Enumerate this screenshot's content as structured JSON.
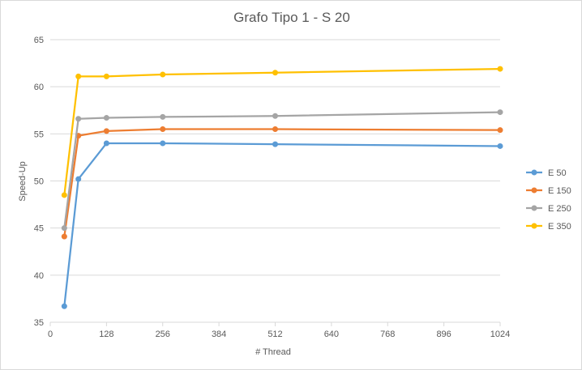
{
  "chart_data": {
    "type": "line",
    "title": "Grafo Tipo 1 - S 20",
    "xlabel": "# Thread",
    "ylabel": "Speed-Up",
    "xlim": [
      0,
      1024
    ],
    "ylim": [
      35,
      65
    ],
    "x_ticks": [
      "0",
      "128",
      "256",
      "384",
      "512",
      "640",
      "768",
      "896",
      "1024"
    ],
    "y_ticks": [
      "35",
      "40",
      "45",
      "50",
      "55",
      "60",
      "65"
    ],
    "grid": true,
    "legend_position": "right",
    "x": [
      32,
      64,
      128,
      256,
      512,
      1024
    ],
    "series": [
      {
        "name": "E 50",
        "color": "#5b9bd5",
        "values": [
          36.7,
          50.2,
          54.0,
          54.0,
          53.9,
          53.7
        ]
      },
      {
        "name": "E 150",
        "color": "#ed7d31",
        "values": [
          44.1,
          54.8,
          55.3,
          55.5,
          55.5,
          55.4
        ]
      },
      {
        "name": "E 250",
        "color": "#a5a5a5",
        "values": [
          45.0,
          56.6,
          56.7,
          56.8,
          56.9,
          57.3
        ]
      },
      {
        "name": "E 350",
        "color": "#ffc000",
        "values": [
          48.5,
          61.1,
          61.1,
          61.3,
          61.5,
          61.9
        ]
      }
    ]
  }
}
